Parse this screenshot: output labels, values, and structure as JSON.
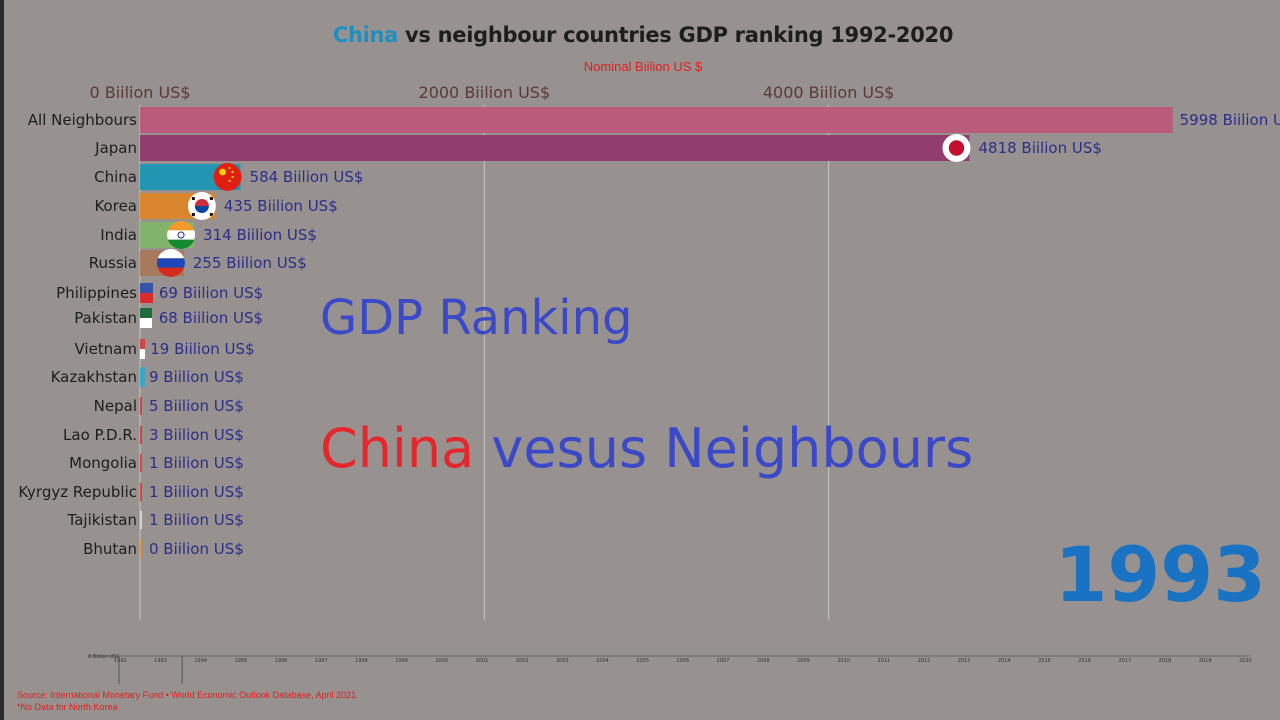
{
  "header": {
    "title_highlight": "China",
    "title_rest": " vs neighbour countries GDP ranking 1992-2020",
    "subtitle": "Nominal Biilion US $"
  },
  "overlay": {
    "line1": "GDP Ranking",
    "line2_red": "China",
    "line2_rest": " vesus Neighbours",
    "year": "1993"
  },
  "footer": {
    "source": "Source: International Monetary Fund • World Economic Outlook Database, April 2021",
    "note": "*No Data for North Korea"
  },
  "colors": {
    "background": "#979290",
    "highlight": "#1f8fc2",
    "subtitle": "#e0201e",
    "overlay_blue": "#3b49c8",
    "overlay_red": "#e5262a",
    "year": "#1a72c2"
  },
  "chart_data": {
    "type": "bar",
    "orientation": "horizontal",
    "title": "China vs neighbour countries GDP ranking 1992-2020",
    "subtitle": "Nominal Biilion US $",
    "xlim": [
      0,
      6000
    ],
    "ticks": [
      {
        "value": 0,
        "label": "0 Biilion US$"
      },
      {
        "value": 2000,
        "label": "2000 Biilion US$"
      },
      {
        "value": 4000,
        "label": "4000 Biilion US$"
      }
    ],
    "grid": true,
    "unit_suffix": " Biilion US$",
    "categories": [
      "All Neighbours",
      "Japan",
      "China",
      "Korea",
      "India",
      "Russia",
      "Philippines",
      "Pakistan",
      "Vietnam",
      "Kazakhstan",
      "Nepal",
      "Lao P.D.R.",
      "Mongolia",
      "Kyrgyz Republic",
      "Tajikistan",
      "Bhutan"
    ],
    "values": [
      5998,
      4818,
      584,
      435,
      314,
      255,
      69,
      68,
      19,
      9,
      5,
      3,
      1,
      1,
      1,
      0
    ],
    "value_labels": [
      "5998 Biilion U",
      "4818 Biilion US$",
      "584 Biilion US$",
      "435 Biilion US$",
      "314 Biilion US$",
      "255 Biilion US$",
      "69 Biilion US$",
      "68 Biilion US$",
      "19 Biilion US$",
      "9 Biilion US$",
      "5 Biilion US$",
      "3 Biilion US$",
      "1 Biilion US$",
      "1 Biilion US$",
      "1 Biilion US$",
      "0 Biilion US$"
    ],
    "bar_colors": [
      "#bb5b7b",
      "#913d6e",
      "#2396b3",
      "#d9862f",
      "#82b36c",
      "#a7795d",
      "#3554a8",
      "#1e6b3b",
      "#d24545",
      "#3aa7c7",
      "#c24a4a",
      "#c04a4a",
      "#d44b44",
      "#d4453d",
      "#d0d0d0",
      "#e08a3c"
    ],
    "flags": [
      "none",
      "japan-flag-icon",
      "china-flag-icon",
      "korea-flag-icon",
      "india-flag-icon",
      "russia-flag-icon",
      "philippines-flag-icon",
      "pakistan-flag-icon",
      "vietnam-flag-icon",
      "kazakhstan-flag-icon",
      "none",
      "none",
      "mongolia-flag-icon",
      "none",
      "none",
      "none"
    ],
    "timeline": {
      "start_label": "0 Biilion US$",
      "years": [
        "1992",
        "1993",
        "1994",
        "1995",
        "1996",
        "1997",
        "1998",
        "1999",
        "2000",
        "2001",
        "2002",
        "2003",
        "2004",
        "2005",
        "2006",
        "2007",
        "2008",
        "2009",
        "2010",
        "2011",
        "2012",
        "2013",
        "2014",
        "2015",
        "2016",
        "2017",
        "2018",
        "2019",
        "2020"
      ],
      "current": "1993"
    }
  }
}
